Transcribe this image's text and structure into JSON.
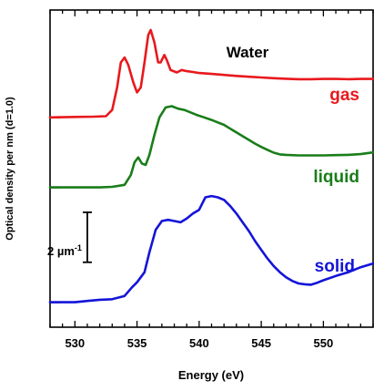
{
  "chart_data": {
    "type": "line",
    "title": "Water",
    "xlabel": "Energy (eV)",
    "ylabel": "Optical density per nm (d=1.0)",
    "xlim": [
      528,
      554
    ],
    "xticks": [
      530,
      535,
      540,
      545,
      550
    ],
    "scale_bar": {
      "label": "2 µm",
      "superscript": "-1",
      "value": 2,
      "x": 531
    },
    "series": [
      {
        "name": "gas",
        "color": "#e8191d",
        "baseline": 7.4,
        "points": [
          [
            528.0,
            7.4
          ],
          [
            530.0,
            7.42
          ],
          [
            531.5,
            7.43
          ],
          [
            532.5,
            7.45
          ],
          [
            533.0,
            7.7
          ],
          [
            533.4,
            8.6
          ],
          [
            533.7,
            9.6
          ],
          [
            534.0,
            9.8
          ],
          [
            534.3,
            9.5
          ],
          [
            534.7,
            8.8
          ],
          [
            535.0,
            8.4
          ],
          [
            535.3,
            8.6
          ],
          [
            535.6,
            9.6
          ],
          [
            535.9,
            10.7
          ],
          [
            536.1,
            10.9
          ],
          [
            536.4,
            10.4
          ],
          [
            536.7,
            9.6
          ],
          [
            536.9,
            9.6
          ],
          [
            537.2,
            9.9
          ],
          [
            537.4,
            9.7
          ],
          [
            537.7,
            9.3
          ],
          [
            538.2,
            9.2
          ],
          [
            538.6,
            9.3
          ],
          [
            539.0,
            9.25
          ],
          [
            539.5,
            9.22
          ],
          [
            540.0,
            9.18
          ],
          [
            541.0,
            9.14
          ],
          [
            542.0,
            9.1
          ],
          [
            543.0,
            9.06
          ],
          [
            544.0,
            9.03
          ],
          [
            545.0,
            9.0
          ],
          [
            546.0,
            8.97
          ],
          [
            547.0,
            8.95
          ],
          [
            548.0,
            8.93
          ],
          [
            549.0,
            8.93
          ],
          [
            550.0,
            8.94
          ],
          [
            551.0,
            8.94
          ],
          [
            552.0,
            8.93
          ],
          [
            553.0,
            8.94
          ],
          [
            554.0,
            8.94
          ]
        ]
      },
      {
        "name": "liquid",
        "color": "#1a7d1a",
        "baseline": 4.6,
        "points": [
          [
            528.0,
            4.6
          ],
          [
            530.0,
            4.6
          ],
          [
            532.0,
            4.6
          ],
          [
            533.0,
            4.62
          ],
          [
            534.0,
            4.7
          ],
          [
            534.5,
            5.1
          ],
          [
            534.8,
            5.6
          ],
          [
            535.1,
            5.8
          ],
          [
            535.4,
            5.55
          ],
          [
            535.7,
            5.5
          ],
          [
            536.0,
            5.9
          ],
          [
            536.4,
            6.7
          ],
          [
            536.8,
            7.4
          ],
          [
            537.3,
            7.8
          ],
          [
            537.8,
            7.85
          ],
          [
            538.3,
            7.75
          ],
          [
            538.8,
            7.7
          ],
          [
            539.3,
            7.6
          ],
          [
            539.8,
            7.5
          ],
          [
            540.3,
            7.42
          ],
          [
            541.0,
            7.3
          ],
          [
            541.5,
            7.2
          ],
          [
            542.0,
            7.1
          ],
          [
            542.5,
            6.95
          ],
          [
            543.0,
            6.8
          ],
          [
            543.5,
            6.65
          ],
          [
            544.0,
            6.5
          ],
          [
            544.5,
            6.35
          ],
          [
            545.0,
            6.22
          ],
          [
            545.5,
            6.1
          ],
          [
            546.0,
            5.99
          ],
          [
            546.5,
            5.92
          ],
          [
            547.0,
            5.9
          ],
          [
            548.0,
            5.88
          ],
          [
            549.0,
            5.88
          ],
          [
            550.0,
            5.88
          ],
          [
            551.0,
            5.89
          ],
          [
            552.0,
            5.9
          ],
          [
            553.0,
            5.93
          ],
          [
            554.0,
            6.0
          ]
        ]
      },
      {
        "name": "solid",
        "color": "#1414d9",
        "baseline": 0.0,
        "points": [
          [
            528.0,
            0.0
          ],
          [
            530.0,
            0.0
          ],
          [
            531.0,
            0.05
          ],
          [
            532.0,
            0.1
          ],
          [
            533.0,
            0.12
          ],
          [
            534.0,
            0.25
          ],
          [
            534.6,
            0.6
          ],
          [
            535.0,
            0.8
          ],
          [
            535.6,
            1.2
          ],
          [
            536.0,
            2.0
          ],
          [
            536.5,
            2.9
          ],
          [
            537.0,
            3.25
          ],
          [
            537.5,
            3.3
          ],
          [
            538.0,
            3.25
          ],
          [
            538.5,
            3.2
          ],
          [
            539.0,
            3.35
          ],
          [
            539.5,
            3.55
          ],
          [
            540.0,
            3.7
          ],
          [
            540.5,
            4.2
          ],
          [
            541.0,
            4.25
          ],
          [
            541.5,
            4.2
          ],
          [
            542.0,
            4.1
          ],
          [
            542.5,
            3.85
          ],
          [
            543.0,
            3.55
          ],
          [
            543.5,
            3.2
          ],
          [
            544.0,
            2.85
          ],
          [
            544.5,
            2.45
          ],
          [
            545.0,
            2.1
          ],
          [
            545.5,
            1.75
          ],
          [
            546.0,
            1.45
          ],
          [
            546.5,
            1.2
          ],
          [
            547.0,
            1.0
          ],
          [
            547.5,
            0.85
          ],
          [
            548.0,
            0.75
          ],
          [
            548.5,
            0.72
          ],
          [
            549.0,
            0.7
          ],
          [
            549.5,
            0.78
          ],
          [
            550.0,
            0.88
          ],
          [
            551.0,
            1.05
          ],
          [
            552.0,
            1.2
          ],
          [
            553.0,
            1.4
          ],
          [
            554.0,
            1.55
          ]
        ]
      }
    ]
  }
}
